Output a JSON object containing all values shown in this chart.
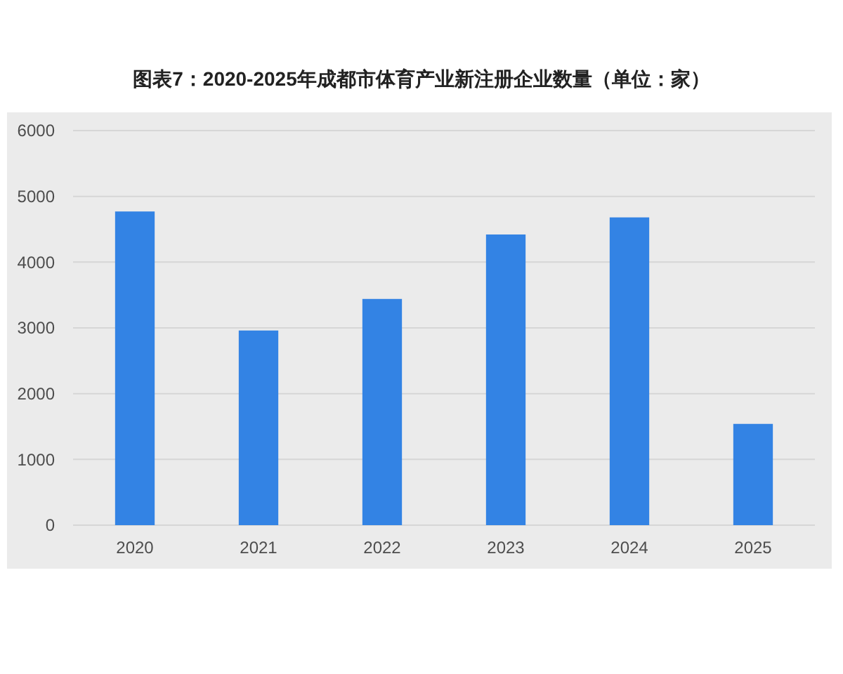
{
  "chart_data": {
    "type": "bar",
    "title": "图表7：2020-2025年成都市体育产业新注册企业数量（单位：家）",
    "categories": [
      "2020",
      "2021",
      "2022",
      "2023",
      "2024",
      "2025"
    ],
    "values": [
      4770,
      2960,
      3440,
      4420,
      4680,
      1540
    ],
    "color": "#3383e4",
    "ylim": [
      0,
      6000
    ],
    "yticks": [
      0,
      1000,
      2000,
      3000,
      4000,
      5000,
      6000
    ],
    "grid": true
  }
}
